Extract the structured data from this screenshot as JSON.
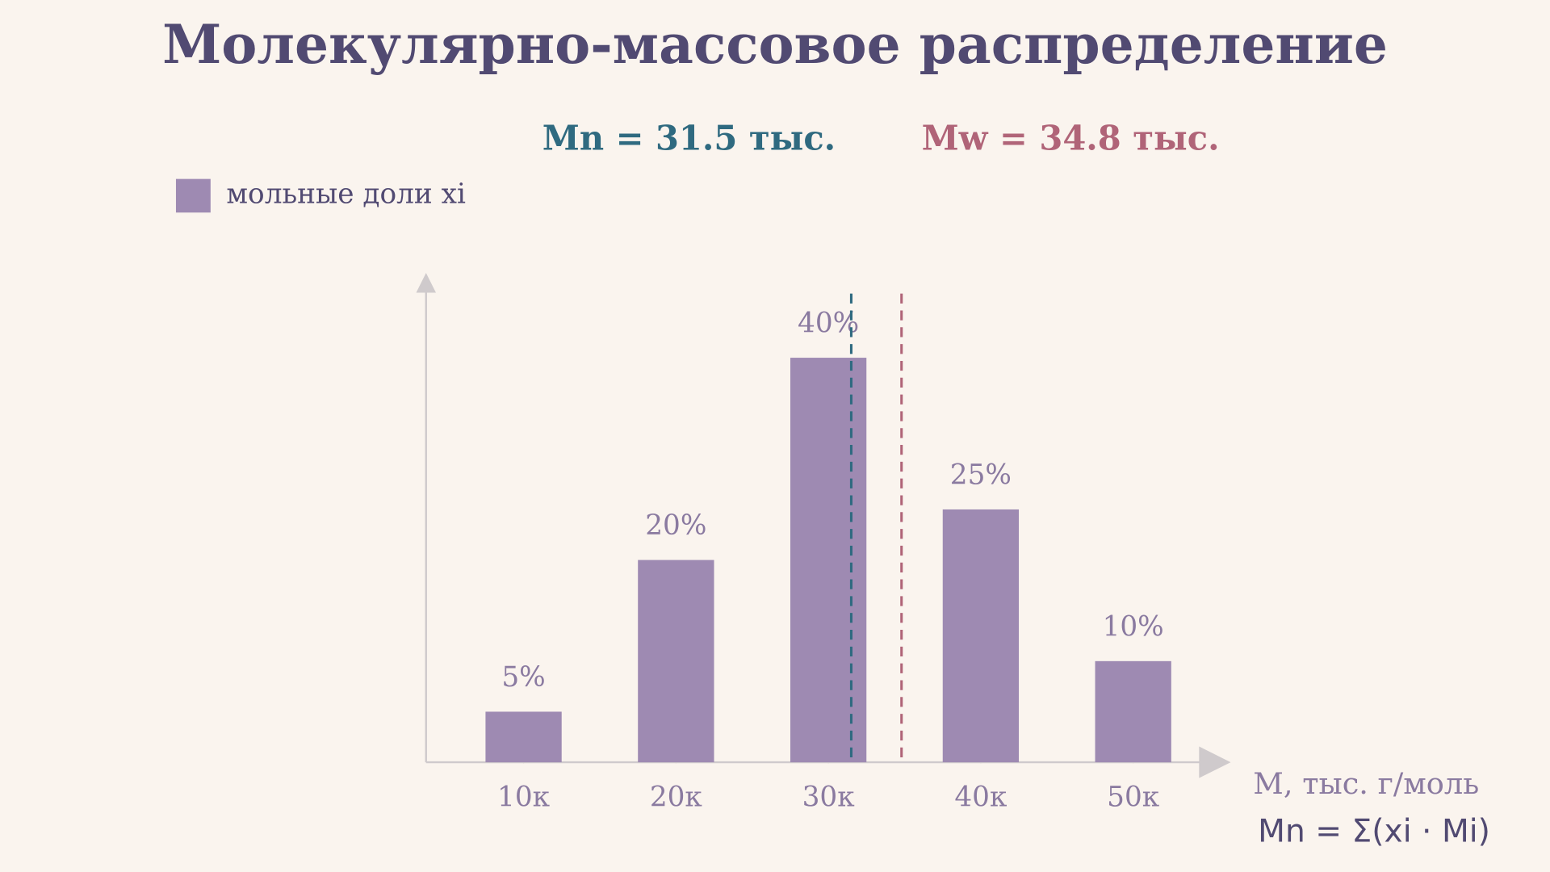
{
  "chart_data": {
    "type": "bar",
    "title": "Молекулярно-массовое распределение",
    "x": [
      10,
      20,
      30,
      40,
      50
    ],
    "series": [
      {
        "name": "мольные доли xi",
        "color": "#9e8ab2",
        "values": [
          5,
          20,
          40,
          25,
          10
        ],
        "value_labels": [
          "5%",
          "20%",
          "40%",
          "25%",
          "10%"
        ]
      }
    ],
    "xlim": [
      3.6,
      56.4
    ],
    "ylim": [
      0,
      48
    ],
    "xticks": [
      {
        "value": 10,
        "label": "10к"
      },
      {
        "value": 20,
        "label": "20к"
      },
      {
        "value": 30,
        "label": "30к"
      },
      {
        "value": 40,
        "label": "40к"
      },
      {
        "value": 50,
        "label": "50к"
      }
    ],
    "x_label": "M, тыс. г/моль",
    "annotations": [
      {
        "label": "Mn = 31.5 тыс.",
        "value": 31.5,
        "color": "#2f6a80"
      },
      {
        "label": "Mw = 34.8 тыс.",
        "value": 34.8,
        "color": "#b06478"
      }
    ],
    "formula": "Mn = Σ(xi · Mi)",
    "legend": "top-left",
    "grid": false
  }
}
